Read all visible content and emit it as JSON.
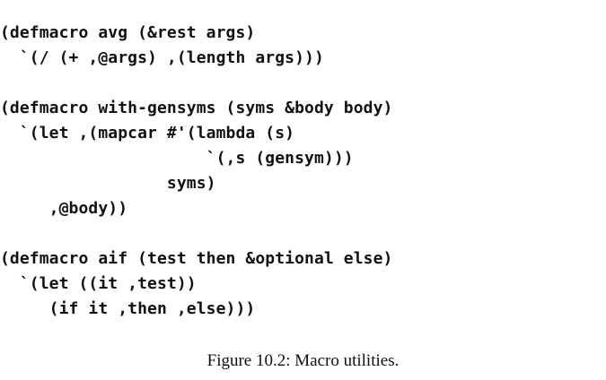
{
  "figure": {
    "code_lines": [
      "(defmacro avg (&rest args)",
      "  `(/ (+ ,@args) ,(length args)))",
      "",
      "(defmacro with-gensyms (syms &body body)",
      "  `(let ,(mapcar #'(lambda (s)",
      "                     `(,s (gensym)))",
      "                 syms)",
      "     ,@body))",
      "",
      "(defmacro aif (test then &optional else)",
      "  `(let ((it ,test))",
      "     (if it ,then ,else)))"
    ],
    "caption": "Figure 10.2: Macro utilities."
  }
}
